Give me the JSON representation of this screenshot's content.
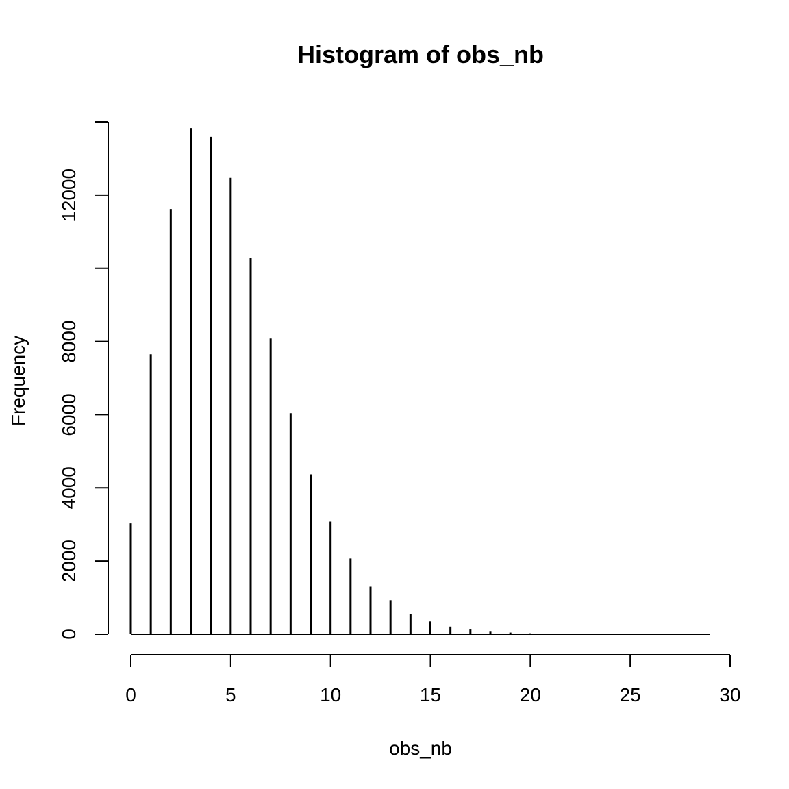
{
  "chart_data": {
    "type": "bar",
    "title": "Histogram of obs_nb",
    "xlabel": "obs_nb",
    "ylabel": "Frequency",
    "x": [
      0,
      1,
      2,
      3,
      4,
      5,
      6,
      7,
      8,
      9,
      10,
      11,
      12,
      13,
      14,
      15,
      16,
      17,
      18,
      19,
      20,
      21,
      22,
      23,
      24,
      25,
      26,
      27,
      28,
      29
    ],
    "values": [
      3030,
      7650,
      11620,
      13830,
      13590,
      12470,
      10280,
      8080,
      6040,
      4370,
      3080,
      2070,
      1300,
      930,
      560,
      350,
      210,
      130,
      70,
      45,
      25,
      15,
      8,
      5,
      3,
      2,
      1,
      1,
      1,
      1
    ],
    "xlim": [
      0,
      30
    ],
    "ylim": [
      0,
      14000
    ],
    "xticks": [
      0,
      5,
      10,
      15,
      20,
      25,
      30
    ],
    "xtick_labels": [
      "0",
      "5",
      "10",
      "15",
      "20",
      "25",
      "30"
    ],
    "yticks": [
      0,
      2000,
      4000,
      6000,
      8000,
      10000,
      12000,
      14000
    ],
    "ytick_labels": [
      "0",
      "2000",
      "4000",
      "6000",
      "8000",
      "",
      "12000",
      ""
    ],
    "grid": false,
    "color": "#000000"
  }
}
